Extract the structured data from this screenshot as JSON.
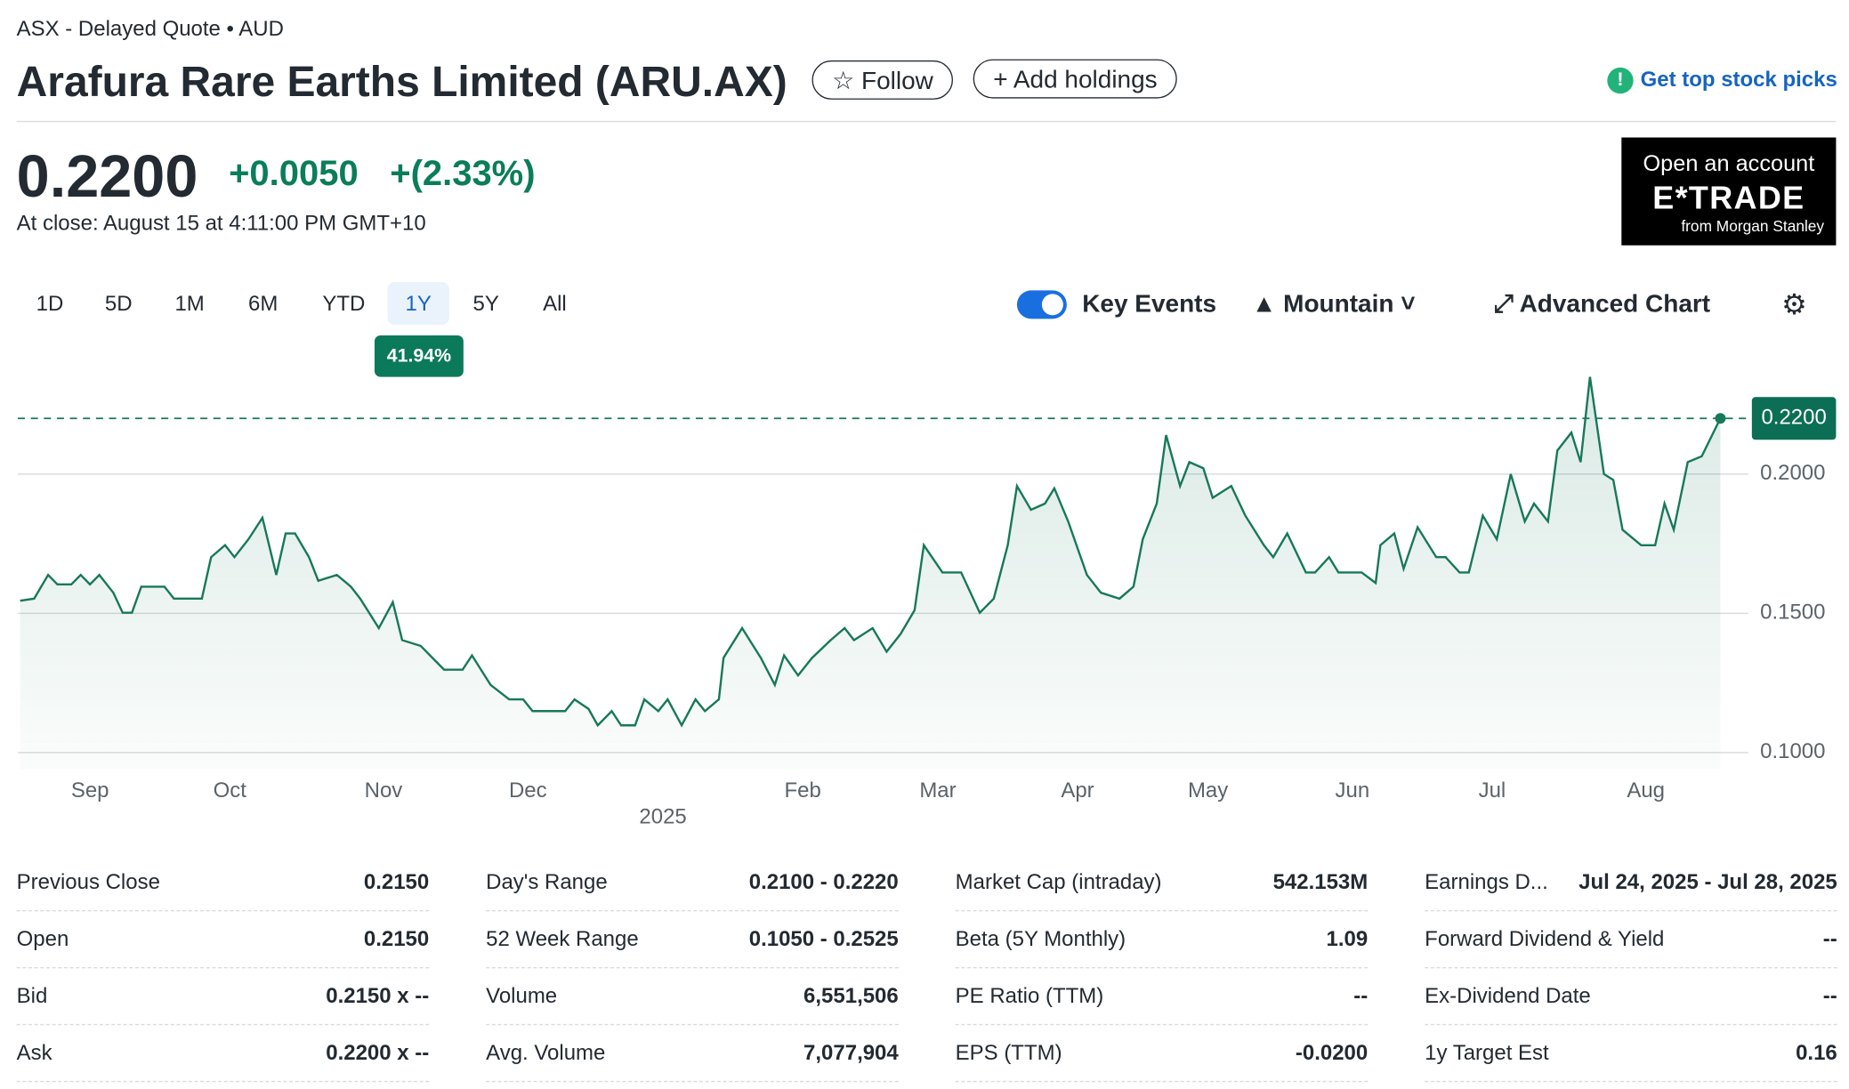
{
  "header": {
    "exchange": "ASX - Delayed Quote • AUD",
    "title": "Arafura Rare Earths Limited (ARU.AX)",
    "follow": "Follow",
    "add_holdings": "Add holdings",
    "promo": "Get top stock picks"
  },
  "quote": {
    "price": "0.2200",
    "change": "+0.0050",
    "change_percent": "+(2.33%)",
    "close_time": "At close: August 15 at 4:11:00 PM GMT+10"
  },
  "ad": {
    "line1": "Open an account",
    "brand": "E*TRADE",
    "sub": "from Morgan Stanley"
  },
  "toolbar": {
    "ranges": [
      "1D",
      "5D",
      "1M",
      "6M",
      "YTD",
      "1Y",
      "5Y",
      "All"
    ],
    "selected_range": 5,
    "range_return": "41.94%",
    "key_events": "Key Events",
    "chart_style": "Mountain",
    "advanced": "Advanced Chart"
  },
  "chart": {
    "type": "line",
    "color": "#17785a",
    "x": [
      0,
      3,
      6,
      8,
      11,
      13,
      15,
      17,
      20,
      22,
      24,
      26,
      31,
      33,
      39,
      41,
      44,
      46,
      49,
      52,
      55,
      57,
      59,
      62,
      64,
      68,
      71,
      73,
      77,
      80,
      82,
      86,
      91,
      95,
      97,
      101,
      105,
      108,
      110,
      117,
      119,
      122,
      124,
      127,
      129,
      132,
      134,
      137,
      139,
      142,
      145,
      147,
      150,
      151,
      155,
      159,
      162,
      164,
      167,
      170,
      174,
      177,
      179,
      183,
      186,
      189,
      192,
      194,
      198,
      202,
      206,
      209,
      212,
      214,
      217,
      220,
      222,
      225,
      229,
      232,
      236,
      239,
      241,
      244,
      246,
      249,
      251,
      254,
      256,
      260,
      263,
      267,
      269,
      272,
      276,
      278,
      281,
      283,
      288,
      291,
      292,
      295,
      297,
      300,
      304,
      306,
      309,
      311,
      314,
      317,
      320,
      323,
      325,
      328,
      330,
      333,
      335,
      337,
      340,
      342,
      344,
      348,
      351,
      353,
      355,
      358,
      361,
      365
    ],
    "values": [
      0.1545,
      0.1553,
      0.1638,
      0.1604,
      0.1604,
      0.1638,
      0.1604,
      0.1638,
      0.1574,
      0.1502,
      0.1502,
      0.1596,
      0.1596,
      0.1553,
      0.1553,
      0.1702,
      0.1745,
      0.1702,
      0.1766,
      0.1843,
      0.1638,
      0.1787,
      0.1787,
      0.1702,
      0.1617,
      0.1638,
      0.1596,
      0.1553,
      0.1447,
      0.154,
      0.1404,
      0.1383,
      0.1298,
      0.1298,
      0.1349,
      0.1243,
      0.1191,
      0.1191,
      0.1149,
      0.1149,
      0.1191,
      0.1157,
      0.1098,
      0.1149,
      0.1098,
      0.1098,
      0.1191,
      0.1149,
      0.1191,
      0.1098,
      0.1191,
      0.1149,
      0.1191,
      0.134,
      0.1447,
      0.134,
      0.1243,
      0.1349,
      0.1277,
      0.134,
      0.1404,
      0.1447,
      0.1404,
      0.1447,
      0.1362,
      0.1426,
      0.1511,
      0.1745,
      0.1647,
      0.1647,
      0.1502,
      0.1553,
      0.1745,
      0.1957,
      0.1872,
      0.1894,
      0.1949,
      0.183,
      0.1638,
      0.1574,
      0.1553,
      0.1596,
      0.1766,
      0.1894,
      0.214,
      0.1957,
      0.2043,
      0.2021,
      0.1915,
      0.1957,
      0.1851,
      0.1745,
      0.1702,
      0.1787,
      0.1647,
      0.1647,
      0.1702,
      0.1647,
      0.1647,
      0.1609,
      0.1745,
      0.1787,
      0.166,
      0.1809,
      0.1702,
      0.1702,
      0.1647,
      0.1647,
      0.1851,
      0.1766,
      0.2,
      0.183,
      0.1894,
      0.183,
      0.2085,
      0.2149,
      0.2043,
      0.2349,
      0.2,
      0.1979,
      0.18,
      0.1745,
      0.1745,
      0.1894,
      0.18,
      0.2043,
      0.2064,
      0.22
    ],
    "xlim": [
      0,
      367
    ],
    "ylim": [
      0.094,
      0.243
    ],
    "xticks": [
      {
        "value": 15,
        "label": "Sep"
      },
      {
        "value": 45,
        "label": "Oct"
      },
      {
        "value": 78,
        "label": "Nov"
      },
      {
        "value": 109,
        "label": "Dec"
      },
      {
        "value": 138,
        "label": "2025"
      },
      {
        "value": 168,
        "label": "Feb"
      },
      {
        "value": 197,
        "label": "Mar"
      },
      {
        "value": 227,
        "label": "Apr"
      },
      {
        "value": 255,
        "label": "May"
      },
      {
        "value": 286,
        "label": "Jun"
      },
      {
        "value": 316,
        "label": "Jul"
      },
      {
        "value": 349,
        "label": "Aug"
      }
    ],
    "yticks": [
      {
        "value": 0.1,
        "label": "0.1000"
      },
      {
        "value": 0.15,
        "label": "0.1500"
      },
      {
        "value": 0.2,
        "label": "0.2000"
      }
    ],
    "grid": true,
    "reference_line": {
      "value": 0.22,
      "label": "0.2200"
    }
  },
  "stats": {
    "columns": [
      [
        [
          "Previous Close",
          "0.2150"
        ],
        [
          "Open",
          "0.2150"
        ],
        [
          "Bid",
          "0.2150 x --"
        ],
        [
          "Ask",
          "0.2200 x --"
        ]
      ],
      [
        [
          "Day's Range",
          "0.2100 - 0.2220"
        ],
        [
          "52 Week Range",
          "0.1050 - 0.2525"
        ],
        [
          "Volume",
          "6,551,506"
        ],
        [
          "Avg. Volume",
          "7,077,904"
        ]
      ],
      [
        [
          "Market Cap (intraday)",
          "542.153M"
        ],
        [
          "Beta (5Y Monthly)",
          "1.09"
        ],
        [
          "PE Ratio (TTM)",
          "--"
        ],
        [
          "EPS (TTM)",
          "-0.0200"
        ]
      ],
      [
        [
          "Earnings D...",
          "Jul 24, 2025 - Jul 28, 2025"
        ],
        [
          "Forward Dividend & Yield",
          "--"
        ],
        [
          "Ex-Dividend Date",
          "--"
        ],
        [
          "1y Target Est",
          "0.16"
        ]
      ]
    ]
  }
}
